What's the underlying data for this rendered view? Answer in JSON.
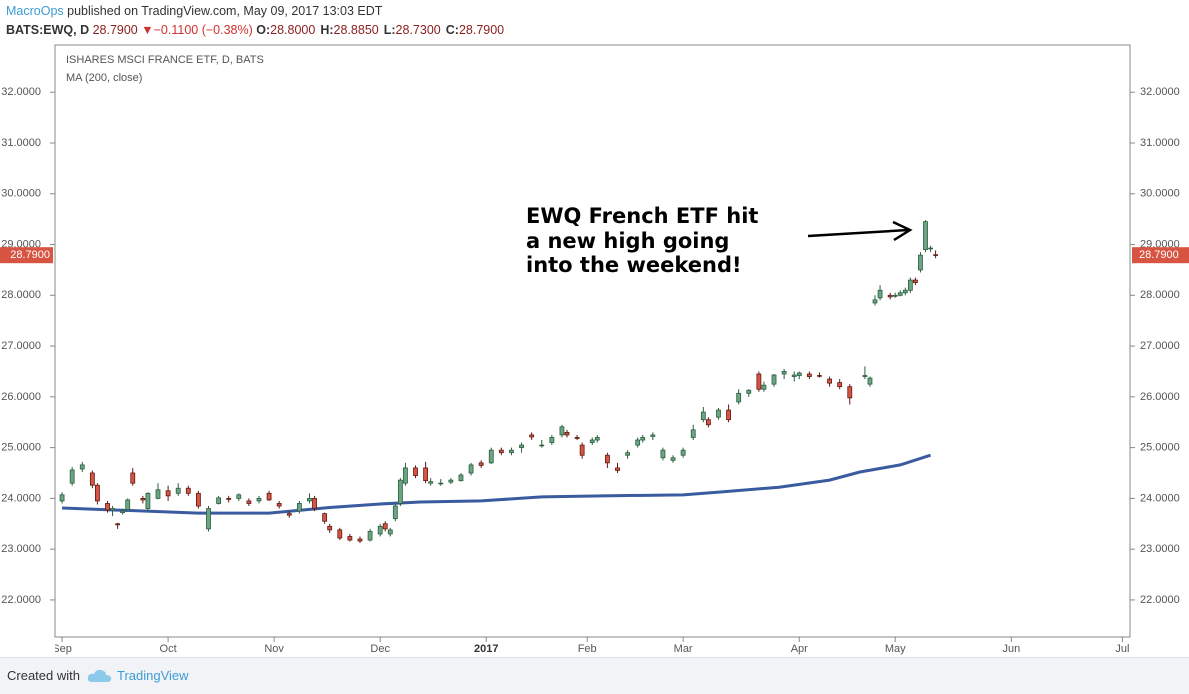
{
  "header": {
    "author": "MacroOps",
    "published": "published on TradingView.com, May 09, 2017 13:03 EDT",
    "symbol": "BATS:EWQ, D",
    "last": "28.7900",
    "change_arrow": "▼",
    "change": "−0.1100 (−0.38%)",
    "ohlc": [
      {
        "label": "O:",
        "value": "28.8000"
      },
      {
        "label": "H:",
        "value": "28.8850"
      },
      {
        "label": "L:",
        "value": "28.7300"
      },
      {
        "label": "C:",
        "value": "28.7900"
      }
    ]
  },
  "chart_data": {
    "type": "candlestick",
    "title": "ISHARES MSCI FRANCE ETF, D, BATS",
    "x": [
      0,
      2,
      4,
      6,
      7,
      9,
      10,
      11,
      12,
      13,
      14,
      16,
      17,
      19,
      21,
      23,
      25,
      27,
      29,
      31,
      33,
      35,
      37,
      39,
      41,
      43,
      45,
      47,
      49,
      50,
      52,
      53,
      55,
      57,
      59,
      61,
      63,
      64,
      65,
      66,
      67,
      68,
      70,
      72,
      73,
      75,
      77,
      79,
      81,
      83,
      85,
      87,
      89,
      91,
      93,
      95,
      97,
      99,
      100,
      102,
      103,
      105,
      106,
      108,
      110,
      112,
      114,
      115,
      117,
      119,
      121,
      123,
      125,
      127,
      128,
      130,
      132,
      134,
      136,
      138,
      139,
      141,
      143,
      145,
      146,
      148,
      150,
      152,
      154,
      156,
      159,
      160,
      161,
      162,
      164,
      165,
      166,
      167,
      168,
      169,
      170,
      171,
      172,
      173
    ],
    "open": [
      23.95,
      24.3,
      24.58,
      24.5,
      24.26,
      23.9,
      23.77,
      23.5,
      23.72,
      23.78,
      24.5,
      24.0,
      23.8,
      24.0,
      24.15,
      24.1,
      24.2,
      24.1,
      23.4,
      23.9,
      24.0,
      24.0,
      23.95,
      23.95,
      24.1,
      23.9,
      23.7,
      23.75,
      23.95,
      24.0,
      23.7,
      23.45,
      23.38,
      23.25,
      23.2,
      23.18,
      23.3,
      23.5,
      23.3,
      23.6,
      23.9,
      24.3,
      24.6,
      24.6,
      24.3,
      24.3,
      24.32,
      24.35,
      24.5,
      24.7,
      24.7,
      24.95,
      24.9,
      25.0,
      25.25,
      25.05,
      25.1,
      25.25,
      25.3,
      25.2,
      25.05,
      25.1,
      25.15,
      24.85,
      24.6,
      24.85,
      25.05,
      25.15,
      25.22,
      24.8,
      24.75,
      24.85,
      25.2,
      25.55,
      25.55,
      25.6,
      25.74,
      25.9,
      26.07,
      26.45,
      26.15,
      26.25,
      26.45,
      26.4,
      26.42,
      26.45,
      26.42,
      26.35,
      26.28,
      26.2,
      26.4,
      26.25,
      27.85,
      27.95,
      28.0,
      27.98,
      28.0,
      28.05,
      28.1,
      28.3,
      28.5,
      28.9,
      28.92,
      28.8
    ],
    "high": [
      24.12,
      24.62,
      24.72,
      24.55,
      24.3,
      23.95,
      23.85,
      23.52,
      23.8,
      24.0,
      24.6,
      24.05,
      24.12,
      24.3,
      24.25,
      24.3,
      24.25,
      24.15,
      23.85,
      24.05,
      24.05,
      24.1,
      24.0,
      24.05,
      24.15,
      23.95,
      23.75,
      23.95,
      24.1,
      24.05,
      23.72,
      23.5,
      23.42,
      23.3,
      23.25,
      23.4,
      23.5,
      23.55,
      23.42,
      23.9,
      24.4,
      24.7,
      24.65,
      24.72,
      24.4,
      24.38,
      24.4,
      24.5,
      24.7,
      24.75,
      25.0,
      25.0,
      25.0,
      25.1,
      25.3,
      25.15,
      25.25,
      25.45,
      25.35,
      25.25,
      25.1,
      25.2,
      25.25,
      24.9,
      24.7,
      24.95,
      25.2,
      25.25,
      25.3,
      25.0,
      24.85,
      25.0,
      25.45,
      25.8,
      25.6,
      25.78,
      25.85,
      26.15,
      26.15,
      26.5,
      26.3,
      26.45,
      26.55,
      26.5,
      26.5,
      26.5,
      26.48,
      26.4,
      26.35,
      26.25,
      26.6,
      26.4,
      28.0,
      28.2,
      28.05,
      28.05,
      28.1,
      28.15,
      28.35,
      28.35,
      28.85,
      29.48,
      28.98,
      28.885
    ],
    "low": [
      23.9,
      24.25,
      24.52,
      24.2,
      23.88,
      23.72,
      23.65,
      23.4,
      23.68,
      23.75,
      24.25,
      23.9,
      23.75,
      23.98,
      23.95,
      24.05,
      24.05,
      23.8,
      23.35,
      23.88,
      23.92,
      23.95,
      23.85,
      23.9,
      23.95,
      23.8,
      23.62,
      23.7,
      23.9,
      23.75,
      23.5,
      23.32,
      23.18,
      23.15,
      23.12,
      23.15,
      23.25,
      23.35,
      23.25,
      23.55,
      23.85,
      24.25,
      24.4,
      24.3,
      24.25,
      24.25,
      24.28,
      24.33,
      24.45,
      24.6,
      24.68,
      24.85,
      24.85,
      24.9,
      25.15,
      25.0,
      25.05,
      25.2,
      25.2,
      25.15,
      24.78,
      25.05,
      25.1,
      24.6,
      24.5,
      24.78,
      25.0,
      25.1,
      25.15,
      24.75,
      24.7,
      24.8,
      25.15,
      25.5,
      25.4,
      25.55,
      25.5,
      25.85,
      26.0,
      26.1,
      26.1,
      26.2,
      26.35,
      26.3,
      26.35,
      26.35,
      26.38,
      26.2,
      26.15,
      25.85,
      26.35,
      26.2,
      27.8,
      27.9,
      27.92,
      27.95,
      27.98,
      28.0,
      28.05,
      28.2,
      28.45,
      28.85,
      28.85,
      28.73
    ],
    "close": [
      24.07,
      24.56,
      24.66,
      24.26,
      23.95,
      23.77,
      23.8,
      23.48,
      23.75,
      23.97,
      24.3,
      23.97,
      24.1,
      24.17,
      24.05,
      24.2,
      24.1,
      23.85,
      23.8,
      24.01,
      23.98,
      24.07,
      23.9,
      24.0,
      23.97,
      23.85,
      23.67,
      23.9,
      24.0,
      23.8,
      23.55,
      23.38,
      23.22,
      23.18,
      23.16,
      23.35,
      23.45,
      23.4,
      23.38,
      23.85,
      24.36,
      24.6,
      24.45,
      24.35,
      24.33,
      24.3,
      24.36,
      24.46,
      24.66,
      24.65,
      24.95,
      24.9,
      24.95,
      25.05,
      25.21,
      25.05,
      25.2,
      25.41,
      25.25,
      25.18,
      24.85,
      25.15,
      25.2,
      24.7,
      24.55,
      24.9,
      25.15,
      25.2,
      25.25,
      24.95,
      24.8,
      24.95,
      25.35,
      25.7,
      25.45,
      25.74,
      25.55,
      26.07,
      26.13,
      26.15,
      26.23,
      26.43,
      26.5,
      26.43,
      26.47,
      26.4,
      26.41,
      26.27,
      26.2,
      25.98,
      26.42,
      26.37,
      27.91,
      28.1,
      27.97,
      28.0,
      28.05,
      28.1,
      28.3,
      28.25,
      28.79,
      29.45,
      28.93,
      28.79
    ],
    "up_color": "#6ba583",
    "down_color": "#d75442",
    "ma": {
      "name": "MA (200, close)",
      "color": "#3a5ba0",
      "x": [
        0,
        11,
        27,
        41,
        53,
        63,
        71,
        83,
        95,
        107,
        123,
        131,
        142,
        152,
        158,
        166,
        172
      ],
      "values": [
        23.81,
        23.77,
        23.71,
        23.71,
        23.82,
        23.89,
        23.93,
        23.95,
        24.03,
        24.05,
        24.07,
        24.13,
        24.22,
        24.36,
        24.52,
        24.66,
        24.85
      ]
    },
    "last_price": {
      "value": 28.79,
      "label": "28.7900"
    },
    "xlim": [
      -1.4,
      211.5
    ],
    "xticks": [
      {
        "value": 0,
        "label": "Sep"
      },
      {
        "value": 21,
        "label": "Oct"
      },
      {
        "value": 42,
        "label": "Nov"
      },
      {
        "value": 63,
        "label": "Dec"
      },
      {
        "value": 84,
        "label": "2017"
      },
      {
        "value": 104,
        "label": "Feb"
      },
      {
        "value": 123,
        "label": "Mar"
      },
      {
        "value": 146,
        "label": "Apr"
      },
      {
        "value": 165,
        "label": "May"
      },
      {
        "value": 188,
        "label": "Jun"
      },
      {
        "value": 210,
        "label": "Jul"
      }
    ],
    "ylim": [
      21.27,
      32.93
    ],
    "yticks": [
      {
        "value": 22,
        "label": "22.0000"
      },
      {
        "value": 23,
        "label": "23.0000"
      },
      {
        "value": 24,
        "label": "24.0000"
      },
      {
        "value": 25,
        "label": "25.0000"
      },
      {
        "value": 26,
        "label": "26.0000"
      },
      {
        "value": 27,
        "label": "27.0000"
      },
      {
        "value": 28,
        "label": "28.0000"
      },
      {
        "value": 29,
        "label": "29.0000"
      },
      {
        "value": 30,
        "label": "30.0000"
      },
      {
        "value": 31,
        "label": "31.0000"
      },
      {
        "value": 32,
        "label": "32.0000"
      }
    ],
    "annotation": [
      "EWQ French ETF hit",
      "a new high going",
      "into the weekend!"
    ]
  },
  "footer": {
    "text": "Created with",
    "brand": "TradingView"
  }
}
